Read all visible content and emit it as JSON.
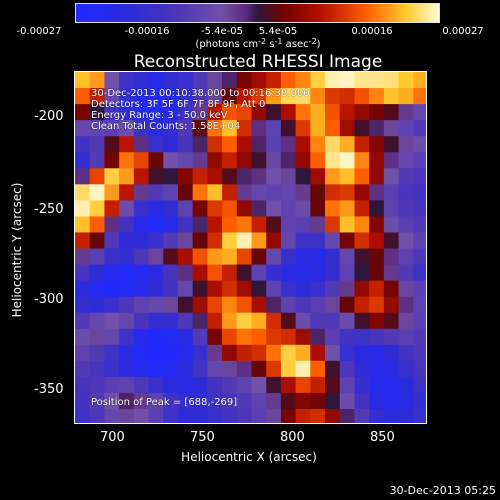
{
  "colorbar": {
    "label_main": "(photons cm",
    "label_cm_exp": "-2",
    "label_s": " s",
    "label_s_exp": "-1",
    "label_asec": " asec",
    "label_asec_exp": "-2",
    "label_close": ")",
    "ticks": [
      "-0.00027",
      "-0.00016",
      "-5.4e-05",
      "5.4e-05",
      "0.00016",
      "0.00027"
    ]
  },
  "chart_data": {
    "type": "heatmap",
    "title": "Reconstructed RHESSI Image",
    "xlabel": "Heliocentric X (arcsec)",
    "ylabel": "Heliocentric Y (arcsec)",
    "x_ticks": [
      "700",
      "750",
      "800",
      "850"
    ],
    "y_ticks": [
      "-200",
      "-250",
      "-300",
      "-350"
    ],
    "x_range": [
      677,
      870
    ],
    "y_range": [
      -177,
      -370
    ],
    "colorbar_range": [
      -0.00027,
      0.00027
    ],
    "grid": false,
    "legend": "none",
    "annotations": [
      "30-Dec-2013 00:10:38.000 to 00:16:38.000",
      "Detectors: 3F 5F 6F 7F 8F 9F, Att 0",
      "Energy Range: 3 - 50.0 keV",
      "Clean    Total Counts: 1.58E+04",
      "Position of Peak = [688,-269]"
    ],
    "peak": [
      688,
      -269
    ],
    "matrix": [
      [
        0.9,
        0.86,
        0.4,
        0.22,
        0.18,
        0.1,
        0.18,
        0.2,
        0.3,
        0.42,
        0.48,
        0.58,
        0.64,
        0.7,
        0.8,
        0.84,
        0.92,
        0.98,
        0.99,
        0.96,
        0.96,
        0.95,
        0.91,
        0.88
      ],
      [
        0.8,
        0.7,
        0.36,
        0.18,
        0.08,
        0.06,
        0.1,
        0.18,
        0.28,
        0.42,
        0.56,
        0.68,
        0.74,
        0.86,
        0.93,
        0.94,
        0.84,
        0.74,
        0.72,
        0.78,
        0.84,
        0.9,
        0.88,
        0.82
      ],
      [
        0.58,
        0.5,
        0.24,
        0.16,
        0.08,
        0.04,
        0.1,
        0.22,
        0.44,
        0.68,
        0.78,
        0.76,
        0.62,
        0.52,
        0.66,
        0.82,
        0.88,
        0.78,
        0.68,
        0.62,
        0.58,
        0.54,
        0.44,
        0.36
      ],
      [
        0.36,
        0.34,
        0.32,
        0.38,
        0.22,
        0.12,
        0.18,
        0.3,
        0.56,
        0.82,
        0.9,
        0.72,
        0.46,
        0.34,
        0.52,
        0.74,
        0.88,
        0.8,
        0.64,
        0.52,
        0.48,
        0.42,
        0.34,
        0.3
      ],
      [
        0.24,
        0.3,
        0.54,
        0.68,
        0.46,
        0.2,
        0.16,
        0.26,
        0.48,
        0.72,
        0.8,
        0.66,
        0.48,
        0.32,
        0.46,
        0.66,
        0.84,
        0.94,
        0.88,
        0.7,
        0.6,
        0.52,
        0.42,
        0.38
      ],
      [
        0.18,
        0.3,
        0.58,
        0.82,
        0.76,
        0.56,
        0.4,
        0.36,
        0.44,
        0.62,
        0.7,
        0.62,
        0.52,
        0.42,
        0.48,
        0.62,
        0.8,
        0.96,
        0.99,
        0.84,
        0.62,
        0.46,
        0.36,
        0.32
      ],
      [
        0.46,
        0.76,
        0.92,
        0.86,
        0.68,
        0.52,
        0.5,
        0.6,
        0.7,
        0.66,
        0.54,
        0.48,
        0.46,
        0.4,
        0.42,
        0.5,
        0.64,
        0.86,
        0.9,
        0.8,
        0.62,
        0.4,
        0.3,
        0.28
      ],
      [
        0.94,
        0.99,
        0.86,
        0.68,
        0.44,
        0.3,
        0.34,
        0.56,
        0.82,
        0.9,
        0.7,
        0.44,
        0.36,
        0.34,
        0.36,
        0.44,
        0.56,
        0.72,
        0.74,
        0.62,
        0.46,
        0.32,
        0.26,
        0.24
      ],
      [
        0.98,
        0.92,
        0.7,
        0.38,
        0.2,
        0.12,
        0.18,
        0.34,
        0.58,
        0.74,
        0.78,
        0.62,
        0.48,
        0.4,
        0.34,
        0.38,
        0.56,
        0.82,
        0.86,
        0.7,
        0.5,
        0.34,
        0.28,
        0.26
      ],
      [
        0.9,
        0.8,
        0.46,
        0.24,
        0.1,
        0.04,
        0.1,
        0.24,
        0.48,
        0.68,
        0.8,
        0.82,
        0.7,
        0.54,
        0.34,
        0.32,
        0.44,
        0.74,
        0.9,
        0.84,
        0.6,
        0.38,
        0.32,
        0.3
      ],
      [
        0.7,
        0.56,
        0.28,
        0.16,
        0.16,
        0.2,
        0.3,
        0.42,
        0.56,
        0.72,
        0.92,
        0.98,
        0.86,
        0.62,
        0.36,
        0.22,
        0.22,
        0.36,
        0.58,
        0.72,
        0.66,
        0.52,
        0.4,
        0.34
      ],
      [
        0.44,
        0.32,
        0.2,
        0.18,
        0.28,
        0.42,
        0.54,
        0.66,
        0.78,
        0.86,
        0.88,
        0.76,
        0.56,
        0.36,
        0.2,
        0.12,
        0.1,
        0.18,
        0.36,
        0.52,
        0.56,
        0.46,
        0.34,
        0.28
      ],
      [
        0.26,
        0.16,
        0.08,
        0.04,
        0.06,
        0.12,
        0.26,
        0.46,
        0.66,
        0.78,
        0.7,
        0.52,
        0.34,
        0.18,
        0.12,
        0.1,
        0.12,
        0.18,
        0.34,
        0.5,
        0.56,
        0.44,
        0.3,
        0.22
      ],
      [
        0.14,
        0.06,
        0.02,
        0.04,
        0.1,
        0.16,
        0.24,
        0.36,
        0.52,
        0.66,
        0.72,
        0.64,
        0.5,
        0.34,
        0.2,
        0.16,
        0.2,
        0.3,
        0.44,
        0.62,
        0.7,
        0.58,
        0.42,
        0.32
      ],
      [
        0.18,
        0.16,
        0.2,
        0.28,
        0.34,
        0.36,
        0.42,
        0.52,
        0.64,
        0.76,
        0.84,
        0.78,
        0.66,
        0.48,
        0.34,
        0.28,
        0.32,
        0.42,
        0.56,
        0.7,
        0.74,
        0.62,
        0.46,
        0.34
      ],
      [
        0.3,
        0.36,
        0.4,
        0.36,
        0.26,
        0.18,
        0.18,
        0.28,
        0.48,
        0.7,
        0.86,
        0.92,
        0.88,
        0.72,
        0.54,
        0.38,
        0.3,
        0.3,
        0.38,
        0.52,
        0.6,
        0.54,
        0.42,
        0.32
      ],
      [
        0.38,
        0.42,
        0.36,
        0.22,
        0.08,
        0.02,
        0.04,
        0.12,
        0.3,
        0.58,
        0.76,
        0.82,
        0.8,
        0.74,
        0.72,
        0.64,
        0.48,
        0.32,
        0.24,
        0.22,
        0.26,
        0.3,
        0.32,
        0.3
      ],
      [
        0.34,
        0.3,
        0.22,
        0.12,
        0.04,
        0.0,
        0.02,
        0.08,
        0.2,
        0.44,
        0.62,
        0.7,
        0.72,
        0.82,
        0.92,
        0.88,
        0.66,
        0.4,
        0.2,
        0.12,
        0.1,
        0.16,
        0.24,
        0.28
      ],
      [
        0.3,
        0.26,
        0.2,
        0.14,
        0.08,
        0.04,
        0.06,
        0.14,
        0.24,
        0.36,
        0.42,
        0.46,
        0.56,
        0.74,
        0.92,
        0.98,
        0.8,
        0.52,
        0.28,
        0.16,
        0.1,
        0.12,
        0.2,
        0.26
      ],
      [
        0.26,
        0.28,
        0.32,
        0.34,
        0.28,
        0.2,
        0.14,
        0.12,
        0.16,
        0.24,
        0.3,
        0.34,
        0.4,
        0.52,
        0.66,
        0.76,
        0.7,
        0.54,
        0.34,
        0.18,
        0.08,
        0.06,
        0.14,
        0.22
      ],
      [
        0.24,
        0.3,
        0.4,
        0.48,
        0.44,
        0.34,
        0.24,
        0.18,
        0.18,
        0.22,
        0.26,
        0.3,
        0.34,
        0.44,
        0.54,
        0.6,
        0.58,
        0.5,
        0.38,
        0.24,
        0.12,
        0.08,
        0.12,
        0.18
      ],
      [
        0.22,
        0.28,
        0.36,
        0.42,
        0.4,
        0.32,
        0.22,
        0.16,
        0.16,
        0.2,
        0.24,
        0.28,
        0.32,
        0.42,
        0.58,
        0.7,
        0.72,
        0.62,
        0.48,
        0.3,
        0.18,
        0.14,
        0.16,
        0.2
      ]
    ]
  },
  "footer": {
    "stamp": "30-Dec-2013 05:25"
  },
  "colors": {
    "negative_low": "#1f29ff",
    "negative_mid": "#4a34b9",
    "neutral": "#2d173d",
    "positive_mid": "#b20e00",
    "positive_high": "#ffca2d",
    "positive_max": "#fffad7"
  }
}
